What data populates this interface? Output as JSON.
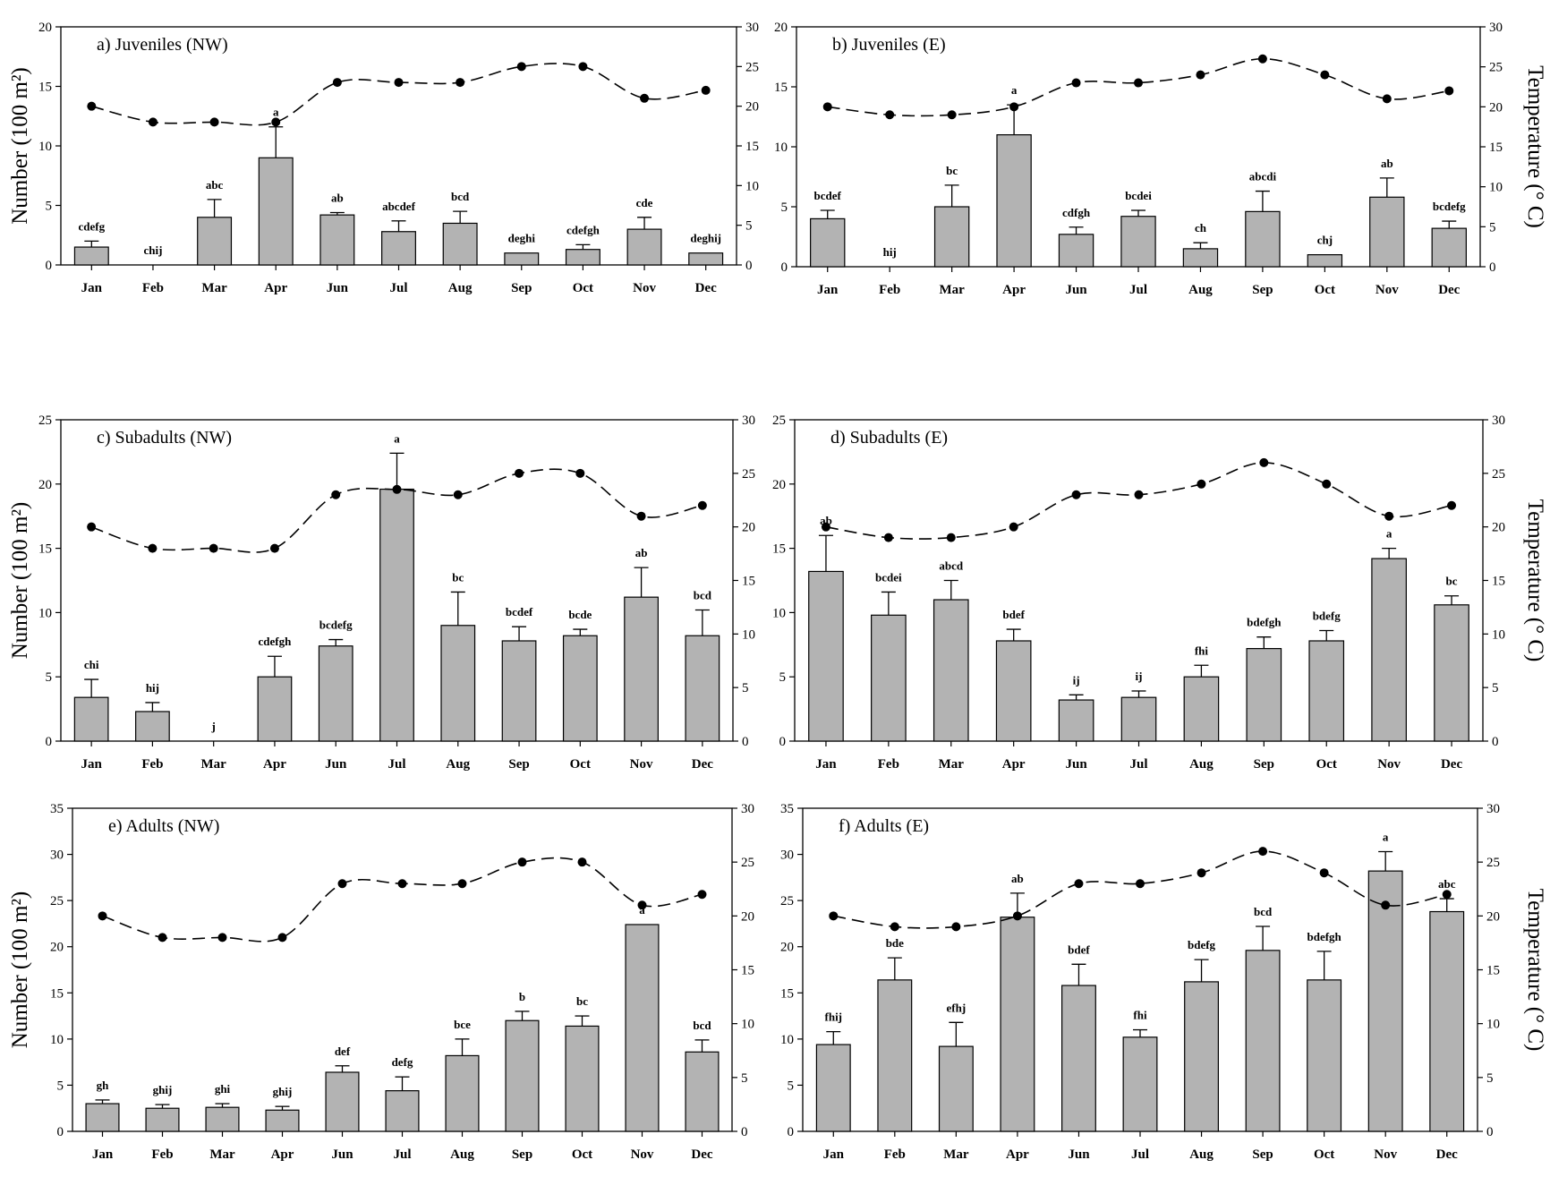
{
  "figure": {
    "left_axis_title": "Number (100 m²)",
    "right_axis_title": "Temperature (° C)"
  },
  "colors": {
    "bar_fill": "#b3b3b3",
    "bar_stroke": "#000000",
    "temperature_line": "#000000",
    "marker": "#000000"
  },
  "chart_data": [
    {
      "type": "bar",
      "panel_id": "a",
      "title": "a) Juveniles (NW)",
      "categories": [
        "Jan",
        "Feb",
        "Mar",
        "Apr",
        "Jun",
        "Jul",
        "Aug",
        "Sep",
        "Oct",
        "Nov",
        "Dec"
      ],
      "values": [
        1.5,
        0,
        4,
        9,
        4.2,
        2.8,
        3.5,
        1,
        1.3,
        3,
        1
      ],
      "error": [
        0.5,
        0,
        1.5,
        2.6,
        0.2,
        0.9,
        1,
        0,
        0.4,
        1,
        0
      ],
      "significance": [
        "cdefg",
        "chij",
        "abc",
        "a",
        "ab",
        "abcdef",
        "bcd",
        "deghi",
        "cdefgh",
        "cde",
        "deghij"
      ],
      "ylim": [
        0,
        20
      ],
      "yticks": [
        0,
        5,
        10,
        15,
        20
      ],
      "temperature": [
        20,
        18,
        18,
        18,
        23,
        23,
        23,
        25,
        25,
        21,
        22
      ],
      "y2lim": [
        0,
        30
      ],
      "y2ticks": [
        0,
        5,
        10,
        15,
        20,
        25,
        30
      ],
      "show_left_title": true,
      "show_right_title": false,
      "grid": false
    },
    {
      "type": "bar",
      "panel_id": "b",
      "title": "b) Juveniles (E)",
      "categories": [
        "Jan",
        "Feb",
        "Mar",
        "Apr",
        "Jun",
        "Jul",
        "Aug",
        "Sep",
        "Oct",
        "Nov",
        "Dec"
      ],
      "values": [
        4,
        0,
        5,
        11,
        2.7,
        4.2,
        1.5,
        4.6,
        1,
        5.8,
        3.2
      ],
      "error": [
        0.7,
        0,
        1.8,
        2.5,
        0.6,
        0.5,
        0.5,
        1.7,
        0,
        1.6,
        0.6
      ],
      "significance": [
        "bcdef",
        "hij",
        "bc",
        "a",
        "cdfgh",
        "bcdei",
        "ch",
        "abcdi",
        "chj",
        "ab",
        "bcdefg"
      ],
      "ylim": [
        0,
        20
      ],
      "yticks": [
        0,
        5,
        10,
        15,
        20
      ],
      "temperature": [
        20,
        19,
        19,
        20,
        23,
        23,
        24,
        26,
        24,
        21,
        22
      ],
      "y2lim": [
        0,
        30
      ],
      "y2ticks": [
        0,
        5,
        10,
        15,
        20,
        25,
        30
      ],
      "show_left_title": false,
      "show_right_title": true,
      "grid": false
    },
    {
      "type": "bar",
      "panel_id": "c",
      "title": "c) Subadults (NW)",
      "categories": [
        "Jan",
        "Feb",
        "Mar",
        "Apr",
        "Jun",
        "Jul",
        "Aug",
        "Sep",
        "Oct",
        "Nov",
        "Dec"
      ],
      "values": [
        3.4,
        2.3,
        0,
        5,
        7.4,
        19.6,
        9,
        7.8,
        8.2,
        11.2,
        8.2
      ],
      "error": [
        1.4,
        0.7,
        0,
        1.6,
        0.5,
        2.8,
        2.6,
        1.1,
        0.5,
        2.3,
        2
      ],
      "significance": [
        "chi",
        "hij",
        "j",
        "cdefgh",
        "bcdefg",
        "a",
        "bc",
        "bcdef",
        "bcde",
        "ab",
        "bcd"
      ],
      "ylim": [
        0,
        25
      ],
      "yticks": [
        0,
        5,
        10,
        15,
        20,
        25
      ],
      "temperature": [
        20,
        18,
        18,
        18,
        23,
        23.5,
        23,
        25,
        25,
        21,
        22
      ],
      "y2lim": [
        0,
        30
      ],
      "y2ticks": [
        0,
        5,
        10,
        15,
        20,
        25,
        30
      ],
      "show_left_title": true,
      "show_right_title": false,
      "grid": false
    },
    {
      "type": "bar",
      "panel_id": "d",
      "title": "d) Subadults (E)",
      "categories": [
        "Jan",
        "Feb",
        "Mar",
        "Apr",
        "Jun",
        "Jul",
        "Aug",
        "Sep",
        "Oct",
        "Nov",
        "Dec"
      ],
      "values": [
        13.2,
        9.8,
        11,
        7.8,
        3.2,
        3.4,
        5,
        7.2,
        7.8,
        14.2,
        10.6
      ],
      "error": [
        2.8,
        1.8,
        1.5,
        0.9,
        0.4,
        0.5,
        0.9,
        0.9,
        0.8,
        0.8,
        0.7
      ],
      "significance": [
        "ab",
        "bcdei",
        "abcd",
        "bdef",
        "ij",
        "ij",
        "fhi",
        "bdefgh",
        "bdefg",
        "a",
        "bc"
      ],
      "ylim": [
        0,
        25
      ],
      "yticks": [
        0,
        5,
        10,
        15,
        20,
        25
      ],
      "temperature": [
        20,
        19,
        19,
        20,
        23,
        23,
        24,
        26,
        24,
        21,
        22
      ],
      "y2lim": [
        0,
        30
      ],
      "y2ticks": [
        0,
        5,
        10,
        15,
        20,
        25,
        30
      ],
      "show_left_title": false,
      "show_right_title": true,
      "grid": false
    },
    {
      "type": "bar",
      "panel_id": "e",
      "title": "e) Adults (NW)",
      "categories": [
        "Jan",
        "Feb",
        "Mar",
        "Apr",
        "Jun",
        "Jul",
        "Aug",
        "Sep",
        "Oct",
        "Nov",
        "Dec"
      ],
      "values": [
        3,
        2.5,
        2.6,
        2.3,
        6.4,
        4.4,
        8.2,
        12,
        11.4,
        22.4,
        8.6
      ],
      "error": [
        0.4,
        0.4,
        0.4,
        0.4,
        0.7,
        1.5,
        1.8,
        1,
        1.1,
        0,
        1.3
      ],
      "significance": [
        "gh",
        "ghij",
        "ghi",
        "ghij",
        "def",
        "defg",
        "bce",
        "b",
        "bc",
        "a",
        "bcd"
      ],
      "ylim": [
        0,
        35
      ],
      "yticks": [
        0,
        5,
        10,
        15,
        20,
        25,
        30,
        35
      ],
      "temperature": [
        20,
        18,
        18,
        18,
        23,
        23,
        23,
        25,
        25,
        21,
        22
      ],
      "y2lim": [
        0,
        30
      ],
      "y2ticks": [
        0,
        5,
        10,
        15,
        20,
        25,
        30
      ],
      "show_left_title": true,
      "show_right_title": false,
      "grid": false
    },
    {
      "type": "bar",
      "panel_id": "f",
      "title": "f) Adults (E)",
      "categories": [
        "Jan",
        "Feb",
        "Mar",
        "Apr",
        "Jun",
        "Jul",
        "Aug",
        "Sep",
        "Oct",
        "Nov",
        "Dec"
      ],
      "values": [
        9.4,
        16.4,
        9.2,
        23.2,
        15.8,
        10.2,
        16.2,
        19.6,
        16.4,
        28.2,
        23.8
      ],
      "error": [
        1.4,
        2.4,
        2.6,
        2.6,
        2.3,
        0.8,
        2.4,
        2.6,
        3.1,
        2.1,
        1.4
      ],
      "significance": [
        "fhij",
        "bde",
        "efhj",
        "ab",
        "bdef",
        "fhi",
        "bdefg",
        "bcd",
        "bdefgh",
        "a",
        "abc"
      ],
      "ylim": [
        0,
        35
      ],
      "yticks": [
        0,
        5,
        10,
        15,
        20,
        25,
        30,
        35
      ],
      "temperature": [
        20,
        19,
        19,
        20,
        23,
        23,
        24,
        26,
        24,
        21,
        22
      ],
      "y2lim": [
        0,
        30
      ],
      "y2ticks": [
        0,
        5,
        10,
        15,
        20,
        25,
        30
      ],
      "show_left_title": false,
      "show_right_title": true,
      "grid": false
    }
  ]
}
